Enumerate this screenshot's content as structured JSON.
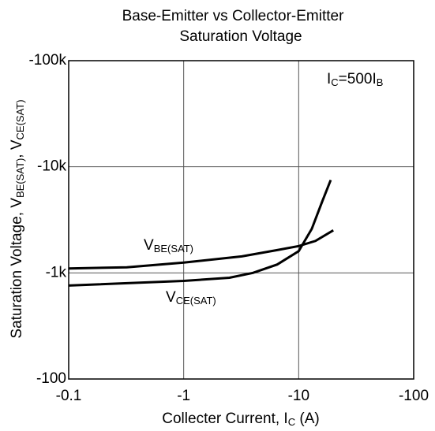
{
  "chart_data": {
    "type": "line",
    "title": [
      "Base-Emitter vs Collector-Emitter",
      "Saturation Voltage"
    ],
    "xlabel": [
      "Collecter Current, I",
      "C",
      " (A)"
    ],
    "ylabel": [
      "Saturation Voltage, V",
      "BE(SAT)",
      ", V",
      "CE(SAT)"
    ],
    "annotation": [
      "I",
      "C",
      "=500I",
      "B"
    ],
    "xlog": true,
    "ylog": true,
    "grid": true,
    "xlim": [
      -0.1,
      -100
    ],
    "xticks": [
      -0.1,
      -1,
      -10,
      -100
    ],
    "ylim": [
      -100,
      -100000
    ],
    "yticks": [
      {
        "value": -100000,
        "label": "-100k"
      },
      {
        "value": -10000,
        "label": "-10k"
      },
      {
        "value": -1000,
        "label": "-1k"
      },
      -100
    ],
    "series": [
      {
        "name": [
          "V",
          "BE(SAT)"
        ],
        "color": "#000000",
        "x": [
          -0.1,
          -0.32,
          -1,
          -3.2,
          -6.5,
          -10,
          -14,
          -20
        ],
        "values": [
          -1100,
          -1130,
          -1250,
          -1430,
          -1640,
          -1790,
          -2000,
          -2520
        ]
      },
      {
        "name": [
          "V",
          "CE(SAT)"
        ],
        "color": "#000000",
        "x": [
          -0.1,
          -1,
          -2.5,
          -4,
          -6.5,
          -10,
          -13,
          -16,
          -19
        ],
        "values": [
          -760,
          -840,
          -900,
          -1000,
          -1200,
          -1600,
          -2600,
          -4700,
          -7500
        ]
      }
    ]
  }
}
